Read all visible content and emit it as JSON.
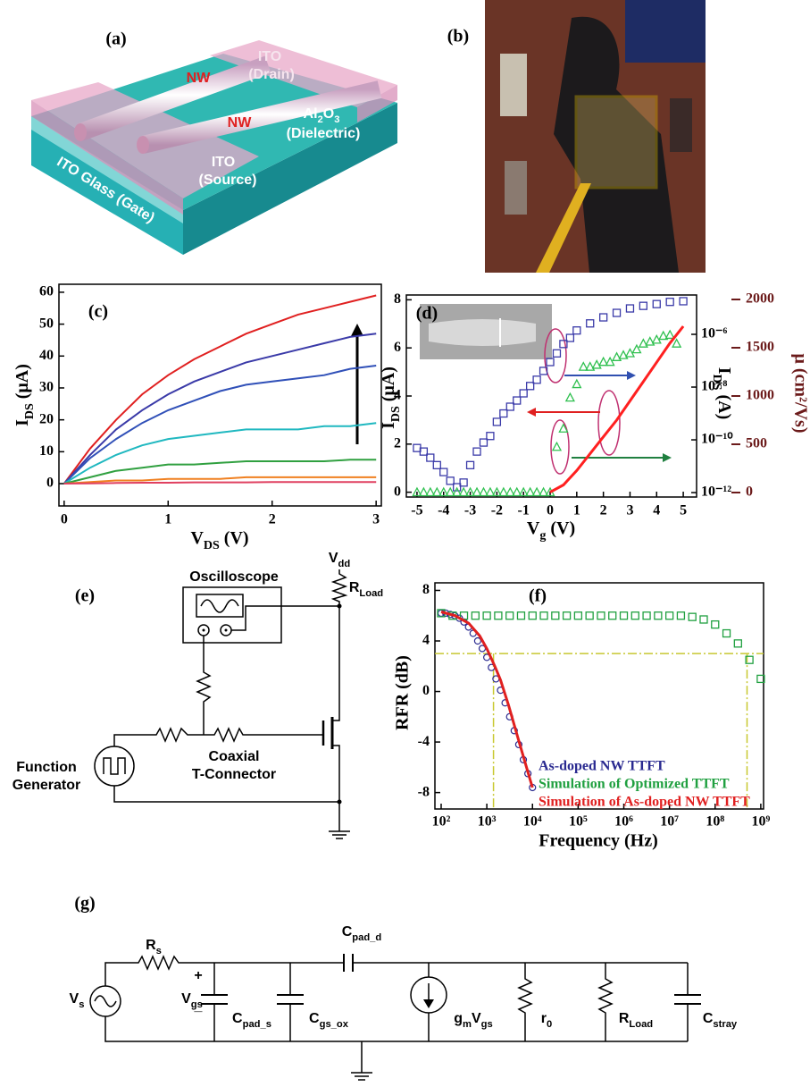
{
  "panel_a": {
    "label": "(a)",
    "drain_1": "ITO",
    "drain_2": "(Drain)",
    "nw_1": "NW",
    "nw_2": "NW",
    "dielectric_1": [
      "Al",
      "2",
      "O",
      "3"
    ],
    "dielectric_2": "(Dielectric)",
    "source_1": "ITO",
    "source_2": "(Source)",
    "gate": "ITO Glass (Gate)"
  },
  "panel_b": {
    "label": "(b)"
  },
  "panel_e": {
    "label": "(e)",
    "vdd": [
      "V",
      "dd"
    ],
    "rload": [
      "R",
      "Load"
    ],
    "oscilloscope": "Oscilloscope",
    "function_1": "Function",
    "function_2": "Generator",
    "coaxial_1": "Coaxial",
    "coaxial_2": "T-Connector"
  },
  "panel_g": {
    "label": "(g)",
    "rs": [
      "R",
      "s"
    ],
    "vs": [
      "V",
      "s"
    ],
    "plus": "+",
    "vgs": [
      "V",
      "gs"
    ],
    "minus": "_",
    "cpad_d": [
      "C",
      "pad_d"
    ],
    "cpad_s": [
      "C",
      "pad_s"
    ],
    "cgs_ox": [
      "C",
      "gs_ox"
    ],
    "gm_vgs": [
      "g",
      "m",
      "V",
      "gs"
    ],
    "r0": [
      "r",
      "0"
    ],
    "rload": [
      "R",
      "Load"
    ],
    "cstray": [
      "C",
      "stray"
    ]
  },
  "chart_data": [
    {
      "type": "line",
      "label": "(c)",
      "xlabel": [
        "V",
        "DS",
        " (V)"
      ],
      "ylabel": [
        "I",
        "DS",
        " (μA)"
      ],
      "xlim": [
        -0.05,
        3.05
      ],
      "xticks": [
        0,
        1,
        2,
        3
      ],
      "ylim": [
        -7,
        62.5
      ],
      "yticks": [
        0,
        10,
        20,
        30,
        40,
        50,
        60
      ],
      "x": [
        0,
        0.25,
        0.5,
        0.75,
        1,
        1.25,
        1.5,
        1.75,
        2,
        2.25,
        2.5,
        2.75,
        3
      ],
      "series": [
        {
          "color": "#e02020",
          "values": [
            0,
            11,
            20,
            28,
            34,
            39,
            43,
            47,
            50,
            53,
            55,
            57,
            59
          ]
        },
        {
          "color": "#3a3aa8",
          "values": [
            0,
            9,
            17,
            23,
            28,
            32,
            35,
            38,
            40,
            42,
            44,
            46,
            47
          ]
        },
        {
          "color": "#3050b8",
          "values": [
            0,
            8,
            14,
            19,
            23,
            26,
            29,
            31,
            32,
            33,
            34,
            36,
            37
          ]
        },
        {
          "color": "#20b8c0",
          "values": [
            0,
            5,
            9,
            12,
            14,
            15,
            16,
            17,
            17,
            17,
            18,
            18,
            19
          ]
        },
        {
          "color": "#30a040",
          "values": [
            0,
            2,
            4,
            5,
            6,
            6,
            6.5,
            7,
            7,
            7,
            7,
            7.5,
            7.5
          ]
        },
        {
          "color": "#f08020",
          "values": [
            0,
            0.5,
            1,
            1,
            1.5,
            1.5,
            1.5,
            2,
            2,
            2,
            2,
            2,
            2
          ]
        },
        {
          "color": "#e04060",
          "values": [
            0,
            0.1,
            0.2,
            0.3,
            0.3,
            0.4,
            0.4,
            0.4,
            0.5,
            0.5,
            0.5,
            0.5,
            0.5
          ]
        }
      ]
    },
    {
      "type": "scatter",
      "label": "(d)",
      "xlabel": [
        "V",
        "g",
        " (V)"
      ],
      "ylabel": [
        "I",
        "DS",
        " (μA)"
      ],
      "y2label": [
        "I",
        "DS",
        " (A)"
      ],
      "y3label": "μ (cm²/Vs)",
      "y3color": "#6b1a1a",
      "xlim": [
        -5.4,
        5.5
      ],
      "xticks": [
        -5,
        -4,
        -3,
        -2,
        -1,
        0,
        1,
        2,
        3,
        4,
        5
      ],
      "ylim": [
        -0.2,
        8.2
      ],
      "yticks": [
        0,
        2,
        4,
        6,
        8
      ],
      "y2log": true,
      "y2lim": [
        6.8e-13,
        3.1e-05
      ],
      "y2ticks": [
        {
          "value": 1e-06,
          "label": "10⁻⁶"
        },
        {
          "value": 1e-08,
          "label": "10⁻⁸"
        },
        {
          "value": 1e-10,
          "label": "10⁻¹⁰"
        },
        {
          "value": 1e-12,
          "label": "10⁻¹²"
        }
      ],
      "y3lim": [
        0,
        2000
      ],
      "y3ticks": [
        0,
        500,
        1000,
        1500,
        2000
      ],
      "series": [
        {
          "color": "#3a3aa8",
          "marker": "square",
          "axis": "y2",
          "x": [
            -5,
            -4.75,
            -4.5,
            -4.25,
            -4,
            -3.75,
            -3.5,
            -3.25,
            -3,
            -2.75,
            -2.5,
            -2.25,
            -2,
            -1.75,
            -1.5,
            -1.25,
            -1,
            -0.75,
            -0.5,
            -0.25,
            0,
            0.25,
            0.5,
            0.75,
            1,
            1.5,
            2,
            2.5,
            3,
            3.5,
            4,
            4.5,
            5
          ],
          "values": [
            4.9e-11,
            3.6e-11,
            2.1e-11,
            1.1e-11,
            6e-12,
            2.8e-12,
            1.6e-12,
            2.4e-12,
            1.1e-11,
            3.6e-11,
            7.9e-11,
            1.4e-10,
            4.8e-10,
            1e-09,
            1.8e-09,
            3.1e-09,
            5.8e-09,
            1.1e-08,
            1.9e-08,
            4.1e-08,
            8.9e-08,
            1.9e-07,
            4.3e-07,
            7.3e-07,
            1.4e-06,
            2.6e-06,
            4.4e-06,
            6.5e-06,
            9.6e-06,
            1.2e-05,
            1.4e-05,
            1.7e-05,
            1.8e-05
          ]
        },
        {
          "color": "#30c050",
          "marker": "triangle",
          "axis": "y3",
          "x": [
            -5,
            -4.75,
            -4.5,
            -4.25,
            -4,
            -3.75,
            -3.5,
            -3.25,
            -3,
            -2.75,
            -2.5,
            -2.25,
            -2,
            -1.75,
            -1.5,
            -1.25,
            -1,
            -0.75,
            -0.5,
            -0.25,
            0,
            0.25,
            0.5,
            0.75,
            1,
            1.25,
            1.5,
            1.75,
            2,
            2.25,
            2.5,
            2.75,
            3,
            3.25,
            3.5,
            3.75,
            4,
            4.25,
            4.5,
            4.75
          ],
          "values": [
            0,
            0,
            0,
            0,
            0,
            0,
            0,
            0,
            0,
            0,
            0,
            0,
            0,
            0,
            0,
            0,
            0,
            0,
            0,
            0,
            0,
            470,
            660,
            980,
            1120,
            1300,
            1300,
            1320,
            1350,
            1350,
            1400,
            1420,
            1440,
            1480,
            1540,
            1560,
            1580,
            1620,
            1630,
            1540
          ]
        },
        {
          "color": "#ff2020",
          "marker": "none",
          "x": [
            0,
            0.5,
            1,
            1.5,
            2,
            2.5,
            3,
            3.5,
            4,
            4.5,
            5
          ],
          "values": [
            0,
            0.3,
            0.9,
            1.6,
            2.3,
            3.0,
            3.8,
            4.6,
            5.4,
            6.2,
            6.9
          ]
        }
      ]
    },
    {
      "type": "scatter",
      "label": "(f)",
      "xlabel": "Frequency (Hz)",
      "ylabel": "RFR (dB)",
      "xlog": true,
      "xlim": [
        73,
        1150000000.0
      ],
      "xticks": [
        {
          "value": 100,
          "label": "10²"
        },
        {
          "value": 1000,
          "label": "10³"
        },
        {
          "value": 10000,
          "label": "10⁴"
        },
        {
          "value": 100000,
          "label": "10⁵"
        },
        {
          "value": 1000000,
          "label": "10⁶"
        },
        {
          "value": 10000000,
          "label": "10⁷"
        },
        {
          "value": 100000000,
          "label": "10⁸"
        },
        {
          "value": 1000000000,
          "label": "10⁹"
        }
      ],
      "ylim": [
        -9.3,
        8.6
      ],
      "yticks": [
        -8,
        -4,
        0,
        4,
        8
      ],
      "legend": "lower right",
      "hlines": [
        3
      ],
      "vlines": [
        1400,
        500000000.0
      ],
      "ref_color": "#c8c830",
      "series": [
        {
          "name": "As-doped NW TTFT",
          "color": "#2a2a90",
          "marker": "circle",
          "x": [
            100,
            126,
            158,
            200,
            251,
            316,
            398,
            501,
            631,
            794,
            1000,
            1259,
            1585,
            1995,
            2512,
            3162,
            3981,
            5012,
            6310,
            7943,
            10000
          ],
          "values": [
            6.2,
            6.2,
            6.1,
            6.0,
            5.8,
            5.5,
            5.1,
            4.6,
            4.0,
            3.4,
            2.7,
            1.9,
            1.0,
            0.1,
            -0.9,
            -2.0,
            -3.1,
            -4.2,
            -5.4,
            -6.5,
            -7.6
          ]
        },
        {
          "name": "Simulation of Optimized TTFT",
          "color": "#20a040",
          "marker": "square",
          "x": [
            100,
            178,
            316,
            562,
            1000,
            1778,
            3162,
            5623,
            10000,
            17783,
            31623,
            56234,
            100000,
            177828,
            316228,
            562341,
            1000000,
            1778279,
            3162278,
            5623413,
            10000000,
            17782794,
            31622777,
            56234133,
            100000000,
            177827941,
            316227766,
            562341325,
            1000000000
          ],
          "values": [
            6.2,
            6,
            6,
            6,
            6,
            6,
            6,
            6,
            6,
            6,
            6,
            6,
            6,
            6,
            6,
            6,
            6,
            6,
            6,
            6,
            6,
            6.0,
            5.9,
            5.7,
            5.3,
            4.6,
            3.8,
            2.5,
            1.0
          ]
        },
        {
          "name": "Simulation of As-doped NW TTFT",
          "color": "#e02020",
          "marker": "none",
          "x": [
            100,
            200,
            400,
            700,
            1000,
            1500,
            2000,
            3000,
            5000,
            7000,
            10000
          ],
          "values": [
            6.3,
            6.0,
            5.4,
            4.4,
            3.4,
            2.0,
            0.9,
            -1.1,
            -3.9,
            -5.7,
            -7.6
          ]
        }
      ]
    }
  ]
}
